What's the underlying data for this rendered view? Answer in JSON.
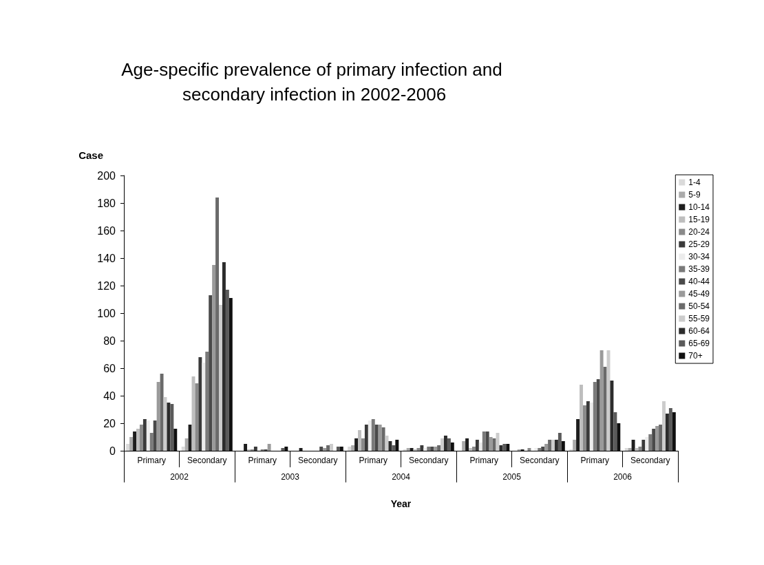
{
  "chart_data": {
    "type": "bar",
    "title": "Age-specific prevalence of primary infection and secondary infection in 2002-2006",
    "xlabel": "Year",
    "ylabel": "Case",
    "categories": [
      "Primary",
      "Secondary",
      "Primary",
      "Secondary",
      "Primary",
      "Secondary",
      "Primary",
      "Secondary",
      "Primary",
      "Secondary"
    ],
    "annotations": [
      "2002",
      "2003",
      "2004",
      "2005",
      "2006"
    ],
    "ylim": [
      0,
      200
    ],
    "yticks": [
      0,
      20,
      40,
      60,
      80,
      100,
      120,
      140,
      160,
      180,
      200
    ],
    "grid": false,
    "legend": "right",
    "series": [
      {
        "name": "1-4",
        "color": "#dadada",
        "values": [
          5,
          3,
          0,
          0,
          3,
          1,
          0,
          0,
          1,
          2
        ]
      },
      {
        "name": "5-9",
        "color": "#aaaaaa",
        "values": [
          10,
          9,
          0,
          0,
          4,
          2,
          7,
          1,
          8,
          2
        ]
      },
      {
        "name": "10-14",
        "color": "#1e1e1e",
        "values": [
          14,
          19,
          5,
          2,
          9,
          2,
          9,
          1,
          23,
          8
        ]
      },
      {
        "name": "15-19",
        "color": "#bebebe",
        "values": [
          16,
          54,
          1,
          0,
          15,
          1,
          2,
          0,
          48,
          2
        ]
      },
      {
        "name": "20-24",
        "color": "#8a8a8a",
        "values": [
          19,
          49,
          1,
          0,
          9,
          2,
          3,
          2,
          33,
          3
        ]
      },
      {
        "name": "25-29",
        "color": "#3a3a3a",
        "values": [
          23,
          68,
          3,
          0,
          19,
          4,
          8,
          0,
          36,
          8
        ]
      },
      {
        "name": "30-34",
        "color": "#ececec",
        "values": [
          22,
          64,
          1,
          0,
          22,
          2,
          6,
          2,
          35,
          10
        ]
      },
      {
        "name": "35-39",
        "color": "#7a7a7a",
        "values": [
          13,
          72,
          1,
          0,
          23,
          3,
          14,
          2,
          50,
          12
        ]
      },
      {
        "name": "40-44",
        "color": "#4a4a4a",
        "values": [
          22,
          113,
          1,
          3,
          19,
          3,
          14,
          3,
          52,
          16
        ]
      },
      {
        "name": "45-49",
        "color": "#9a9a9a",
        "values": [
          50,
          135,
          5,
          2,
          19,
          3,
          10,
          5,
          73,
          18
        ]
      },
      {
        "name": "50-54",
        "color": "#6a6a6a",
        "values": [
          56,
          184,
          0,
          4,
          17,
          4,
          9,
          8,
          61,
          19
        ]
      },
      {
        "name": "55-59",
        "color": "#cccccc",
        "values": [
          39,
          106,
          0,
          5,
          11,
          9,
          13,
          8,
          73,
          36
        ]
      },
      {
        "name": "60-64",
        "color": "#2c2c2c",
        "values": [
          35,
          137,
          0,
          0,
          7,
          11,
          4,
          8,
          51,
          27
        ]
      },
      {
        "name": "65-69",
        "color": "#5a5a5a",
        "values": [
          34,
          117,
          2,
          3,
          4,
          9,
          5,
          13,
          28,
          31
        ]
      },
      {
        "name": "70+",
        "color": "#101010",
        "values": [
          16,
          111,
          3,
          3,
          8,
          6,
          5,
          7,
          20,
          28
        ]
      }
    ]
  }
}
